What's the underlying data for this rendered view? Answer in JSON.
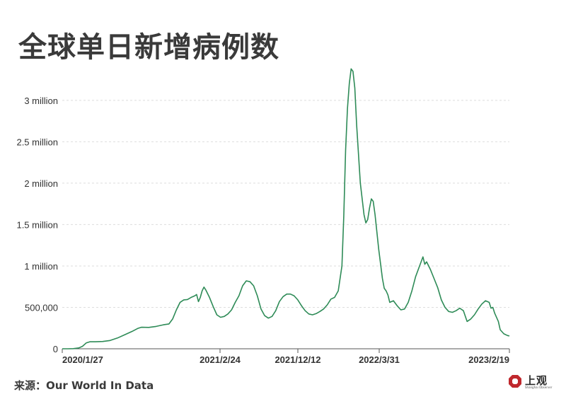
{
  "title": "全球单日新增病例数",
  "source": "来源：Our World In Data",
  "logo": {
    "text": "上观",
    "subtext": "Shanghai Observer"
  },
  "colors": {
    "line": "#2e8b57",
    "grid": "#dddddd",
    "axis": "#555555",
    "text": "#333333",
    "logo": "#c0282d"
  },
  "chart_data": {
    "type": "line",
    "title": "全球单日新增病例数",
    "xlabel": "",
    "ylabel": "",
    "ylim": [
      0,
      3400000
    ],
    "x_ticks": [
      "2020/1/27",
      "2021/2/24",
      "2021/12/12",
      "2022/3/31",
      "2023/2/19"
    ],
    "y_ticks": [
      {
        "value": 0,
        "label": "0"
      },
      {
        "value": 500000,
        "label": "500,000"
      },
      {
        "value": 1000000,
        "label": "1 million"
      },
      {
        "value": 1500000,
        "label": "1.5 million"
      },
      {
        "value": 2000000,
        "label": "2 million"
      },
      {
        "value": 2500000,
        "label": "2.5 million"
      },
      {
        "value": 3000000,
        "label": "3 million"
      }
    ],
    "grid": true,
    "legend": "none",
    "series": [
      {
        "values": [
          [
            0,
            0
          ],
          [
            3,
            0
          ],
          [
            6,
            2000
          ],
          [
            9,
            10000
          ],
          [
            11,
            30000
          ],
          [
            13,
            70000
          ],
          [
            15,
            85000
          ],
          [
            18,
            85000
          ],
          [
            22,
            88000
          ],
          [
            26,
            100000
          ],
          [
            30,
            130000
          ],
          [
            34,
            170000
          ],
          [
            38,
            210000
          ],
          [
            41,
            245000
          ],
          [
            43,
            260000
          ],
          [
            47,
            258000
          ],
          [
            51,
            270000
          ],
          [
            55,
            290000
          ],
          [
            58,
            300000
          ],
          [
            60,
            360000
          ],
          [
            62,
            470000
          ],
          [
            64,
            560000
          ],
          [
            66,
            590000
          ],
          [
            68,
            595000
          ],
          [
            70,
            620000
          ],
          [
            72,
            640000
          ],
          [
            73,
            655000
          ],
          [
            74,
            570000
          ],
          [
            75,
            620000
          ],
          [
            76,
            700000
          ],
          [
            77,
            745000
          ],
          [
            78,
            710000
          ],
          [
            80,
            620000
          ],
          [
            82,
            510000
          ],
          [
            84,
            410000
          ],
          [
            86,
            380000
          ],
          [
            88,
            390000
          ],
          [
            90,
            420000
          ],
          [
            92,
            470000
          ],
          [
            94,
            560000
          ],
          [
            96,
            640000
          ],
          [
            98,
            760000
          ],
          [
            100,
            820000
          ],
          [
            102,
            810000
          ],
          [
            104,
            760000
          ],
          [
            106,
            640000
          ],
          [
            108,
            480000
          ],
          [
            110,
            400000
          ],
          [
            112,
            370000
          ],
          [
            114,
            390000
          ],
          [
            116,
            460000
          ],
          [
            118,
            570000
          ],
          [
            120,
            630000
          ],
          [
            122,
            660000
          ],
          [
            124,
            660000
          ],
          [
            126,
            640000
          ],
          [
            128,
            590000
          ],
          [
            130,
            520000
          ],
          [
            132,
            460000
          ],
          [
            134,
            420000
          ],
          [
            136,
            410000
          ],
          [
            138,
            425000
          ],
          [
            140,
            450000
          ],
          [
            142,
            480000
          ],
          [
            144,
            530000
          ],
          [
            146,
            600000
          ],
          [
            148,
            620000
          ],
          [
            150,
            700000
          ],
          [
            152,
            1000000
          ],
          [
            153,
            1600000
          ],
          [
            154,
            2400000
          ],
          [
            155,
            2900000
          ],
          [
            156,
            3200000
          ],
          [
            157,
            3380000
          ],
          [
            158,
            3350000
          ],
          [
            159,
            3150000
          ],
          [
            160,
            2700000
          ],
          [
            162,
            2000000
          ],
          [
            164,
            1620000
          ],
          [
            165,
            1520000
          ],
          [
            166,
            1560000
          ],
          [
            167,
            1700000
          ],
          [
            168,
            1810000
          ],
          [
            169,
            1780000
          ],
          [
            170,
            1620000
          ],
          [
            172,
            1200000
          ],
          [
            174,
            850000
          ],
          [
            175,
            730000
          ],
          [
            176,
            700000
          ],
          [
            177,
            650000
          ],
          [
            178,
            560000
          ],
          [
            180,
            580000
          ],
          [
            182,
            520000
          ],
          [
            184,
            470000
          ],
          [
            186,
            480000
          ],
          [
            188,
            560000
          ],
          [
            190,
            700000
          ],
          [
            192,
            870000
          ],
          [
            194,
            990000
          ],
          [
            195,
            1050000
          ],
          [
            196,
            1110000
          ],
          [
            197,
            1020000
          ],
          [
            198,
            1050000
          ],
          [
            200,
            960000
          ],
          [
            202,
            850000
          ],
          [
            204,
            740000
          ],
          [
            206,
            590000
          ],
          [
            208,
            500000
          ],
          [
            210,
            450000
          ],
          [
            212,
            440000
          ],
          [
            214,
            460000
          ],
          [
            216,
            490000
          ],
          [
            218,
            460000
          ],
          [
            220,
            330000
          ],
          [
            222,
            360000
          ],
          [
            224,
            410000
          ],
          [
            226,
            480000
          ],
          [
            228,
            540000
          ],
          [
            230,
            580000
          ],
          [
            232,
            560000
          ],
          [
            233,
            490000
          ],
          [
            234,
            500000
          ],
          [
            235,
            430000
          ],
          [
            237,
            330000
          ],
          [
            238,
            230000
          ],
          [
            240,
            180000
          ],
          [
            242,
            160000
          ],
          [
            243,
            155000
          ]
        ]
      }
    ]
  }
}
